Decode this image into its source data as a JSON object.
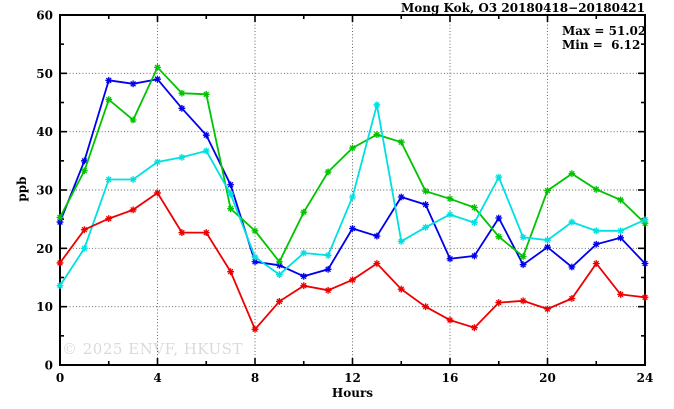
{
  "watermark": "© 2025 ENVF, HKUST",
  "chart_data": {
    "type": "line",
    "title": "Mong Kok, O3 20180418−20180421",
    "annotations": {
      "max_label": "Max = 51.02",
      "min_label": "Min =  6.12",
      "max_value": 51.02,
      "min_value": 6.12
    },
    "xlabel": "Hours",
    "ylabel": "ppb",
    "xlim": [
      0,
      24
    ],
    "ylim": [
      0,
      60
    ],
    "x_ticks": [
      0,
      4,
      8,
      12,
      16,
      20,
      24
    ],
    "x_minor_step": 2,
    "y_ticks": [
      0,
      10,
      20,
      30,
      40,
      50,
      60
    ],
    "y_minor_step": 5,
    "grid": true,
    "legend": "none",
    "marker": "asterisk",
    "x": [
      0,
      1,
      2,
      3,
      4,
      5,
      6,
      7,
      8,
      9,
      10,
      11,
      12,
      13,
      14,
      15,
      16,
      17,
      18,
      19,
      20,
      21,
      22,
      23,
      24
    ],
    "series": [
      {
        "id": "blue",
        "color": "#0000ee",
        "values": [
          24.5,
          35.0,
          48.8,
          48.2,
          49.0,
          44.0,
          39.4,
          30.9,
          17.7,
          17.1,
          15.2,
          16.4,
          23.4,
          22.1,
          28.8,
          27.5,
          18.2,
          18.7,
          25.2,
          17.2,
          20.2,
          16.8,
          20.7,
          21.8,
          17.4
        ]
      },
      {
        "id": "green",
        "color": "#00c400",
        "values": [
          25.3,
          33.3,
          45.5,
          42.0,
          51.02,
          46.6,
          46.4,
          26.8,
          23.0,
          17.7,
          26.2,
          33.1,
          37.2,
          39.5,
          38.2,
          29.8,
          28.5,
          27.0,
          22.0,
          18.6,
          29.9,
          32.8,
          30.1,
          28.3,
          24.3
        ]
      },
      {
        "id": "cyan",
        "color": "#00e0e0",
        "values": [
          13.6,
          20.0,
          31.8,
          31.8,
          34.8,
          35.6,
          36.7,
          29.3,
          18.5,
          15.5,
          19.2,
          18.8,
          28.8,
          44.6,
          21.2,
          23.6,
          25.8,
          24.4,
          32.2,
          21.9,
          21.4,
          24.5,
          23.0,
          23.0,
          24.9
        ]
      },
      {
        "id": "red",
        "color": "#ee0000",
        "values": [
          17.5,
          23.2,
          25.1,
          26.6,
          29.5,
          22.7,
          22.7,
          16.0,
          6.12,
          10.9,
          13.6,
          12.8,
          14.6,
          17.4,
          13.0,
          10.0,
          7.7,
          6.4,
          10.7,
          11.0,
          9.6,
          11.4,
          17.4,
          12.1,
          11.6
        ]
      }
    ]
  }
}
